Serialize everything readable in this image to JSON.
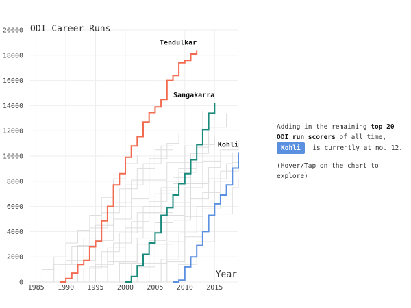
{
  "side_panel": {
    "line1_prefix": "Adding in the remaining ",
    "line1_bold": "top 20 ODI run scorers",
    "line1_suffix": " of all time,",
    "badge": "Kohli",
    "line2_suffix": " is currently at no. 12.",
    "hint": "(Hover/Tap on the chart to explore)"
  },
  "colors": {
    "Tendulkar": "#f26a4f",
    "Sangakarra": "#1a8a7c",
    "Kohli": "#5b8fe0",
    "background_lines": "#dddddd",
    "grid": "#eeeeee"
  },
  "chart_data": {
    "type": "line",
    "title": "ODI Career Runs",
    "xlabel": "Year",
    "ylabel": "",
    "xlim": [
      1984,
      2019
    ],
    "ylim": [
      0,
      20000
    ],
    "x_ticks": [
      "1985",
      "1990",
      "1995",
      "2000",
      "2005",
      "2010",
      "2015"
    ],
    "y_ticks": [
      "0",
      "2000",
      "4000",
      "6000",
      "8000",
      "10000",
      "12000",
      "14000",
      "16000",
      "18000",
      "20000"
    ],
    "grid": true,
    "step": true,
    "highlighted": [
      {
        "name": "Tendulkar",
        "label": "Tendulkar",
        "points": [
          [
            1989,
            0
          ],
          [
            1990,
            280
          ],
          [
            1991,
            700
          ],
          [
            1992,
            1400
          ],
          [
            1993,
            1700
          ],
          [
            1994,
            2800
          ],
          [
            1995,
            3250
          ],
          [
            1996,
            4850
          ],
          [
            1997,
            6000
          ],
          [
            1998,
            7700
          ],
          [
            1999,
            8600
          ],
          [
            2000,
            9900
          ],
          [
            2001,
            10800
          ],
          [
            2002,
            11550
          ],
          [
            2003,
            12700
          ],
          [
            2004,
            13450
          ],
          [
            2005,
            13900
          ],
          [
            2006,
            14500
          ],
          [
            2007,
            16000
          ],
          [
            2008,
            16400
          ],
          [
            2009,
            17400
          ],
          [
            2010,
            17600
          ],
          [
            2011,
            18100
          ],
          [
            2012,
            18400
          ]
        ]
      },
      {
        "name": "Sangakarra",
        "label": "Sangakarra",
        "points": [
          [
            2000,
            0
          ],
          [
            2001,
            450
          ],
          [
            2002,
            1300
          ],
          [
            2003,
            2200
          ],
          [
            2004,
            3100
          ],
          [
            2005,
            3900
          ],
          [
            2006,
            5300
          ],
          [
            2007,
            5900
          ],
          [
            2008,
            6900
          ],
          [
            2009,
            7800
          ],
          [
            2010,
            8600
          ],
          [
            2011,
            9700
          ],
          [
            2012,
            10900
          ],
          [
            2013,
            12100
          ],
          [
            2014,
            13400
          ],
          [
            2015,
            14234
          ]
        ]
      },
      {
        "name": "Kohli",
        "label": "Kohli",
        "points": [
          [
            2008,
            0
          ],
          [
            2009,
            150
          ],
          [
            2010,
            1200
          ],
          [
            2011,
            2000
          ],
          [
            2012,
            2900
          ],
          [
            2013,
            4000
          ],
          [
            2014,
            5300
          ],
          [
            2015,
            6200
          ],
          [
            2016,
            6900
          ],
          [
            2017,
            7700
          ],
          [
            2018,
            9050
          ],
          [
            2019,
            10300
          ]
        ]
      }
    ],
    "background_series": [
      {
        "points": [
          [
            1985,
            0
          ],
          [
            1988,
            1400
          ],
          [
            1991,
            2800
          ],
          [
            1994,
            4300
          ],
          [
            1997,
            6000
          ],
          [
            2000,
            7700
          ],
          [
            2003,
            9400
          ],
          [
            2006,
            10800
          ],
          [
            2008,
            11700
          ]
        ]
      },
      {
        "points": [
          [
            1986,
            0
          ],
          [
            1989,
            1400
          ],
          [
            1992,
            2900
          ],
          [
            1995,
            4500
          ],
          [
            1998,
            6300
          ],
          [
            2001,
            8100
          ],
          [
            2004,
            9800
          ],
          [
            2007,
            11000
          ],
          [
            2009,
            11800
          ]
        ]
      },
      {
        "points": [
          [
            1984,
            0
          ],
          [
            1986,
            1000
          ],
          [
            1988,
            2000
          ],
          [
            1990,
            3100
          ],
          [
            1992,
            4100
          ],
          [
            1994,
            5300
          ],
          [
            1996,
            6700
          ],
          [
            1998,
            8200
          ],
          [
            2000,
            9400
          ],
          [
            2002,
            10100
          ]
        ]
      },
      {
        "points": [
          [
            1987,
            0
          ],
          [
            1990,
            1700
          ],
          [
            1993,
            3500
          ],
          [
            1996,
            5500
          ],
          [
            1999,
            7400
          ],
          [
            2002,
            9000
          ],
          [
            2005,
            10500
          ],
          [
            2008,
            11600
          ]
        ]
      },
      {
        "points": [
          [
            1989,
            0
          ],
          [
            1992,
            1700
          ],
          [
            1995,
            3300
          ],
          [
            1998,
            5000
          ],
          [
            2001,
            6600
          ],
          [
            2004,
            8100
          ],
          [
            2007,
            9500
          ],
          [
            2010,
            10800
          ],
          [
            2013,
            13600
          ]
        ]
      },
      {
        "points": [
          [
            1992,
            0
          ],
          [
            1995,
            1400
          ],
          [
            1998,
            3100
          ],
          [
            2001,
            4800
          ],
          [
            2004,
            6400
          ],
          [
            2007,
            8000
          ],
          [
            2010,
            9500
          ],
          [
            2013,
            10900
          ],
          [
            2015,
            11500
          ]
        ]
      },
      {
        "points": [
          [
            1994,
            0
          ],
          [
            1997,
            1600
          ],
          [
            2000,
            3500
          ],
          [
            2003,
            5500
          ],
          [
            2006,
            7300
          ],
          [
            2009,
            9000
          ],
          [
            2012,
            10700
          ],
          [
            2014,
            11600
          ]
        ]
      },
      {
        "points": [
          [
            1996,
            0
          ],
          [
            1999,
            1600
          ],
          [
            2002,
            3500
          ],
          [
            2005,
            5500
          ],
          [
            2008,
            7800
          ],
          [
            2011,
            10200
          ],
          [
            2014,
            12300
          ],
          [
            2017,
            13400
          ]
        ]
      },
      {
        "points": [
          [
            1996,
            0
          ],
          [
            1999,
            1500
          ],
          [
            2002,
            3000
          ],
          [
            2005,
            4700
          ],
          [
            2008,
            6300
          ],
          [
            2011,
            7800
          ],
          [
            2014,
            9100
          ],
          [
            2016,
            9800
          ]
        ]
      },
      {
        "points": [
          [
            1998,
            0
          ],
          [
            2001,
            1500
          ],
          [
            2004,
            3300
          ],
          [
            2007,
            5300
          ],
          [
            2010,
            7500
          ],
          [
            2013,
            9600
          ],
          [
            2016,
            10500
          ],
          [
            2019,
            11100
          ]
        ]
      },
      {
        "points": [
          [
            1999,
            0
          ],
          [
            2002,
            1200
          ],
          [
            2005,
            3000
          ],
          [
            2008,
            4900
          ],
          [
            2011,
            6600
          ],
          [
            2014,
            8200
          ],
          [
            2017,
            9400
          ],
          [
            2018,
            10300
          ]
        ]
      },
      {
        "points": [
          [
            2004,
            0
          ],
          [
            2007,
            1600
          ],
          [
            2010,
            3600
          ],
          [
            2013,
            5800
          ],
          [
            2016,
            8000
          ],
          [
            2018,
            9300
          ]
        ]
      },
      {
        "points": [
          [
            2006,
            0
          ],
          [
            2009,
            1400
          ],
          [
            2012,
            3200
          ],
          [
            2015,
            5400
          ],
          [
            2018,
            7500
          ],
          [
            2019,
            8200
          ]
        ]
      },
      {
        "points": [
          [
            2003,
            0
          ],
          [
            2006,
            1800
          ],
          [
            2009,
            3900
          ],
          [
            2012,
            6000
          ],
          [
            2015,
            8000
          ],
          [
            2018,
            9500
          ],
          [
            2019,
            10000
          ]
        ]
      },
      {
        "points": [
          [
            2001,
            0
          ],
          [
            2004,
            1500
          ],
          [
            2007,
            3200
          ],
          [
            2010,
            5200
          ],
          [
            2013,
            7100
          ],
          [
            2016,
            8800
          ],
          [
            2019,
            9700
          ]
        ]
      },
      {
        "points": [
          [
            1991,
            0
          ],
          [
            1994,
            1200
          ],
          [
            1997,
            2700
          ],
          [
            2000,
            4300
          ],
          [
            2003,
            6000
          ],
          [
            2006,
            7500
          ],
          [
            2009,
            8700
          ],
          [
            2012,
            9600
          ]
        ]
      },
      {
        "points": [
          [
            1990,
            0
          ],
          [
            1993,
            1100
          ],
          [
            1996,
            2400
          ],
          [
            1999,
            3900
          ],
          [
            2002,
            5500
          ],
          [
            2005,
            7000
          ],
          [
            2008,
            8300
          ],
          [
            2011,
            9300
          ]
        ]
      }
    ]
  }
}
